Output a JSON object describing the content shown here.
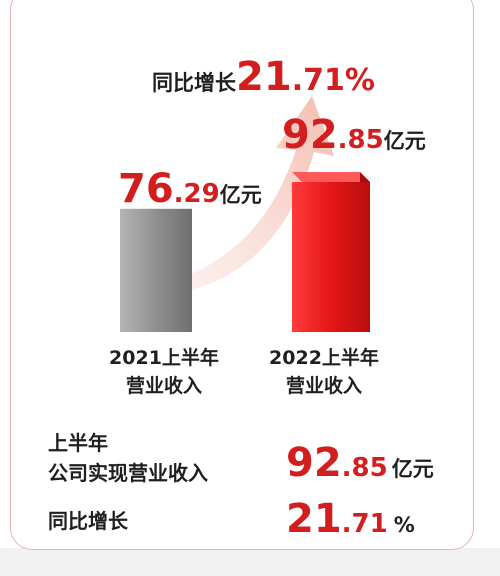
{
  "colors": {
    "accent_red": "#d21e1e",
    "bar_2021": "#9a9a9a",
    "bar_2022": "#e11d1d",
    "arrow": "#f6d2c9",
    "text": "#1f1f1f"
  },
  "chart_data": {
    "type": "bar",
    "categories": [
      "2021上半年营业收入",
      "2022上半年营业收入"
    ],
    "values": [
      76.29,
      92.85
    ],
    "unit": "亿元",
    "ylim": [
      0,
      100
    ],
    "grid": false,
    "bar_labels": [
      {
        "int": "76",
        "dec": ".29",
        "unit": "亿元"
      },
      {
        "int": "92",
        "dec": ".85",
        "unit": "亿元"
      }
    ],
    "category_labels": [
      {
        "line1": "2021上半年",
        "line2": "营业收入"
      },
      {
        "line1": "2022上半年",
        "line2": "营业收入"
      }
    ],
    "growth_annotation": {
      "prefix": "同比增长",
      "int": "21",
      "dec": ".71%"
    }
  },
  "summary": {
    "revenue_label_line1": "上半年",
    "revenue_label_line2": "公司实现营业收入",
    "revenue_int": "92",
    "revenue_dec": ".85",
    "revenue_unit": "亿元",
    "growth_label": "同比增长",
    "growth_int": "21",
    "growth_dec": ".71",
    "growth_unit": "%"
  }
}
